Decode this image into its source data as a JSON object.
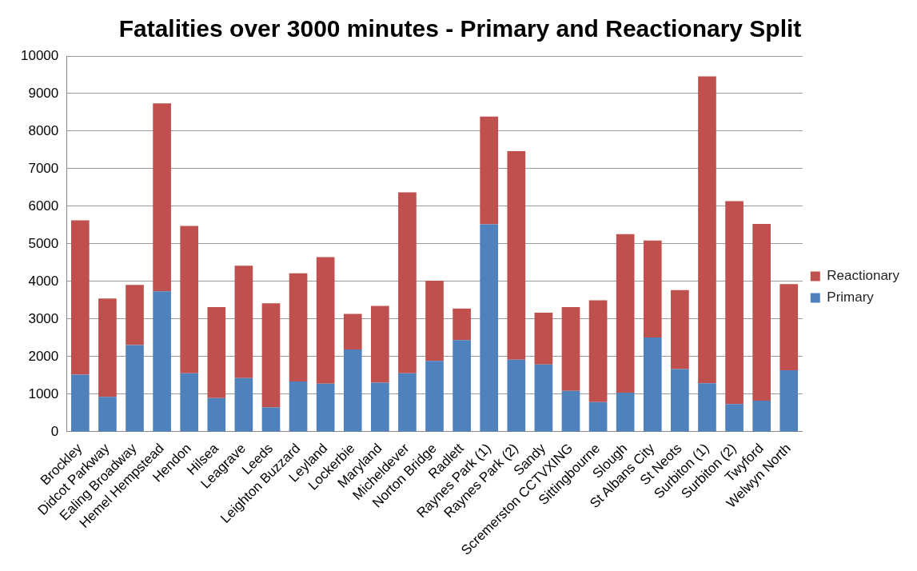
{
  "chart_data": {
    "type": "bar",
    "title": "Fatalities over 3000 minutes - Primary and Reactionary Split",
    "stacked": true,
    "categories": [
      "Brockley",
      "Didcot Parkway",
      "Ealing Broadway",
      "Hemel Hempstead",
      "Hendon",
      "Hilsea",
      "Leagrave",
      "Leeds",
      "Leighton Buzzard",
      "Leyland",
      "Lockerbie",
      "Maryland",
      "Micheldever",
      "Norton Bridge",
      "Radlett",
      "Raynes Park (1)",
      "Raynes Park (2)",
      "Sandy",
      "Scremerston CCTVXING",
      "Sittingbourne",
      "Slough",
      "St Albans City",
      "St Neots",
      "Surbiton (1)",
      "Surbiton (2)",
      "Twyford",
      "Welwyn North"
    ],
    "series": [
      {
        "name": "Primary",
        "color": "#4f81bd",
        "values": [
          1520,
          930,
          2310,
          3740,
          1560,
          900,
          1430,
          650,
          1340,
          1280,
          2190,
          1310,
          1560,
          1890,
          2440,
          5520,
          1920,
          1790,
          1090,
          790,
          1040,
          2510,
          1670,
          1290,
          740,
          830,
          1640
        ]
      },
      {
        "name": "Reactionary",
        "color": "#c0504d",
        "values": [
          4110,
          2620,
          1600,
          5000,
          3920,
          2420,
          2990,
          2770,
          2880,
          3370,
          950,
          2040,
          4810,
          2130,
          840,
          2870,
          5550,
          1380,
          2230,
          2710,
          4220,
          2580,
          2100,
          8170,
          5400,
          4700,
          2290
        ]
      }
    ],
    "ylim": [
      0,
      10000
    ],
    "yticks": [
      0,
      1000,
      2000,
      3000,
      4000,
      5000,
      6000,
      7000,
      8000,
      9000,
      10000
    ],
    "grid": "y",
    "legend": "right"
  }
}
